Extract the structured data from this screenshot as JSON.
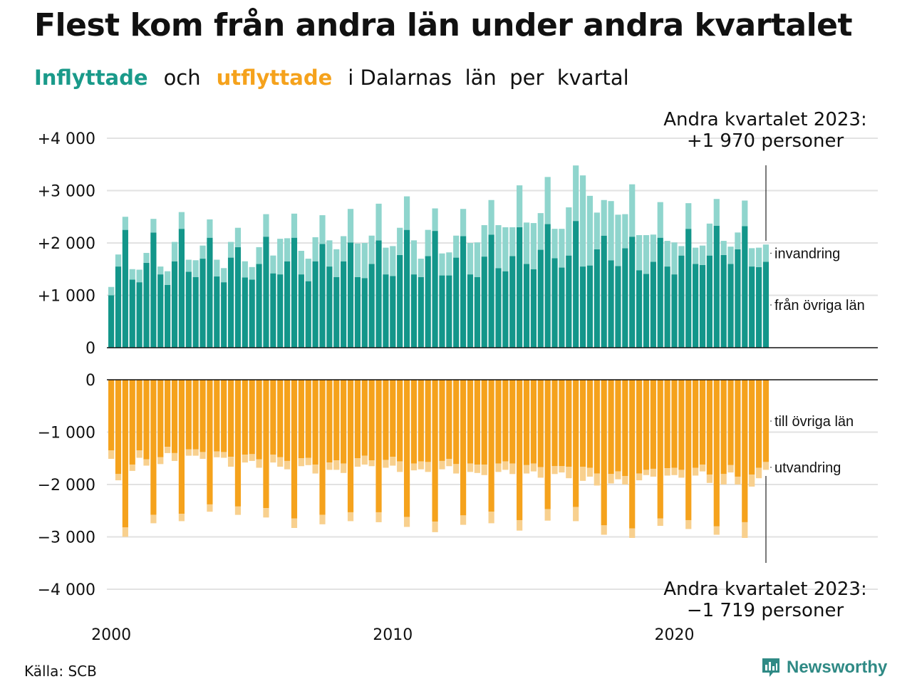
{
  "title": "Flest kom från andra län under andra kvartalet",
  "subtitle": {
    "inflow": "Inflyttade",
    "and": "och",
    "outflow": "utflyttade",
    "rest": "i Dalarnas  län  per  kvartal"
  },
  "source": "Källa: SCB",
  "brand": "Newsworthy",
  "colors": {
    "in_other": "#13968a",
    "in_abroad": "#8fd5cd",
    "out_other": "#f5a21c",
    "out_abroad": "#f8d08e",
    "grid": "#e2e2e2",
    "axis": "#111111"
  },
  "chart_data": [
    {
      "type": "bar",
      "stacked": true,
      "grid": true,
      "ylim": [
        0,
        4200
      ],
      "yticks": [
        0,
        1000,
        2000,
        3000,
        4000
      ],
      "ytick_labels": [
        "0",
        "+1 000",
        "+2 000",
        "+3 000",
        "+4 000"
      ],
      "xticks": [
        2000,
        2010,
        2020
      ],
      "quarters_start": "2000 Q1",
      "series": [
        {
          "name": "från övriga län",
          "values": [
            1000,
            1550,
            2250,
            1300,
            1250,
            1620,
            2200,
            1400,
            1200,
            1650,
            2270,
            1450,
            1350,
            1700,
            2100,
            1360,
            1250,
            1720,
            1920,
            1340,
            1300,
            1600,
            2120,
            1420,
            1400,
            1650,
            2100,
            1400,
            1270,
            1650,
            1980,
            1550,
            1350,
            1650,
            2010,
            1350,
            1330,
            1600,
            2050,
            1400,
            1370,
            1770,
            2250,
            1400,
            1350,
            1750,
            2230,
            1380,
            1380,
            1720,
            2130,
            1400,
            1350,
            1740,
            2160,
            1520,
            1460,
            1750,
            2300,
            1600,
            1500,
            1870,
            2360,
            1710,
            1530,
            1760,
            2420,
            1550,
            1570,
            1880,
            2140,
            1670,
            1560,
            1900,
            2120,
            1480,
            1410,
            1640,
            2100,
            1550,
            1400,
            1760,
            2270,
            1600,
            1580,
            1760,
            2330,
            1770,
            1600,
            1880,
            2320,
            1550,
            1540,
            1640
          ]
        },
        {
          "name": "invandring",
          "values": [
            160,
            230,
            250,
            200,
            240,
            190,
            260,
            150,
            260,
            370,
            320,
            230,
            320,
            250,
            350,
            320,
            270,
            300,
            370,
            310,
            240,
            320,
            430,
            340,
            680,
            440,
            460,
            450,
            430,
            460,
            550,
            500,
            530,
            480,
            640,
            640,
            670,
            540,
            700,
            510,
            570,
            520,
            640,
            650,
            350,
            500,
            430,
            420,
            440,
            420,
            520,
            600,
            660,
            600,
            660,
            820,
            840,
            550,
            800,
            790,
            880,
            700,
            900,
            560,
            740,
            920,
            1060,
            1740,
            1330,
            700,
            680,
            1130,
            980,
            650,
            1000,
            670,
            740,
            520,
            680,
            490,
            610,
            180,
            490,
            310,
            370,
            610,
            510,
            270,
            330,
            320,
            490,
            350,
            370,
            330
          ]
        }
      ],
      "annotation": [
        "Andra kvartalet 2023:",
        "+1 970 personer"
      ]
    },
    {
      "type": "bar",
      "stacked": true,
      "grid": true,
      "ylim": [
        -4200,
        0
      ],
      "yticks": [
        0,
        -1000,
        -2000,
        -3000,
        -4000
      ],
      "ytick_labels": [
        "0",
        "−1 000",
        "−2 000",
        "−3 000",
        "−4 000"
      ],
      "series": [
        {
          "name": "till övriga län",
          "values": [
            -1350,
            -1800,
            -2820,
            -1620,
            -1350,
            -1520,
            -2580,
            -1480,
            -1280,
            -1400,
            -2560,
            -1330,
            -1330,
            -1380,
            -2380,
            -1370,
            -1380,
            -1470,
            -2420,
            -1430,
            -1420,
            -1520,
            -2450,
            -1430,
            -1480,
            -1550,
            -2650,
            -1500,
            -1490,
            -1620,
            -2580,
            -1580,
            -1540,
            -1600,
            -2530,
            -1500,
            -1450,
            -1540,
            -2530,
            -1530,
            -1470,
            -1560,
            -2620,
            -1600,
            -1560,
            -1570,
            -2710,
            -1550,
            -1510,
            -1610,
            -2590,
            -1600,
            -1620,
            -1620,
            -2520,
            -1600,
            -1560,
            -1600,
            -2680,
            -1630,
            -1600,
            -1670,
            -2470,
            -1650,
            -1650,
            -1660,
            -2430,
            -1660,
            -1680,
            -1790,
            -2780,
            -1800,
            -1750,
            -1840,
            -2840,
            -1790,
            -1720,
            -1700,
            -2650,
            -1690,
            -1680,
            -1720,
            -2680,
            -1680,
            -1620,
            -1810,
            -2800,
            -1800,
            -1630,
            -1850,
            -2720,
            -1810,
            -1680,
            -1570
          ]
        },
        {
          "name": "utvandring",
          "values": [
            -160,
            -120,
            -180,
            -120,
            -140,
            -120,
            -160,
            -130,
            -120,
            -150,
            -140,
            -120,
            -120,
            -130,
            -140,
            -110,
            -110,
            -190,
            -160,
            -150,
            -130,
            -160,
            -180,
            -150,
            -180,
            -160,
            -180,
            -150,
            -140,
            -170,
            -180,
            -140,
            -180,
            -180,
            -170,
            -160,
            -170,
            -110,
            -190,
            -150,
            -170,
            -200,
            -190,
            -130,
            -150,
            -190,
            -200,
            -160,
            -140,
            -180,
            -180,
            -160,
            -160,
            -200,
            -220,
            -160,
            -160,
            -200,
            -200,
            -160,
            -150,
            -200,
            -220,
            -150,
            -120,
            -220,
            -270,
            -270,
            -170,
            -230,
            -180,
            -180,
            -150,
            -160,
            -180,
            -130,
            -100,
            -150,
            -140,
            -140,
            -140,
            -150,
            -170,
            -150,
            -130,
            -160,
            -160,
            -200,
            -140,
            -150,
            -300,
            -230,
            -200,
            -150
          ]
        }
      ],
      "annotation": [
        "Andra kvartalet 2023:",
        "−1 719 personer"
      ]
    }
  ]
}
